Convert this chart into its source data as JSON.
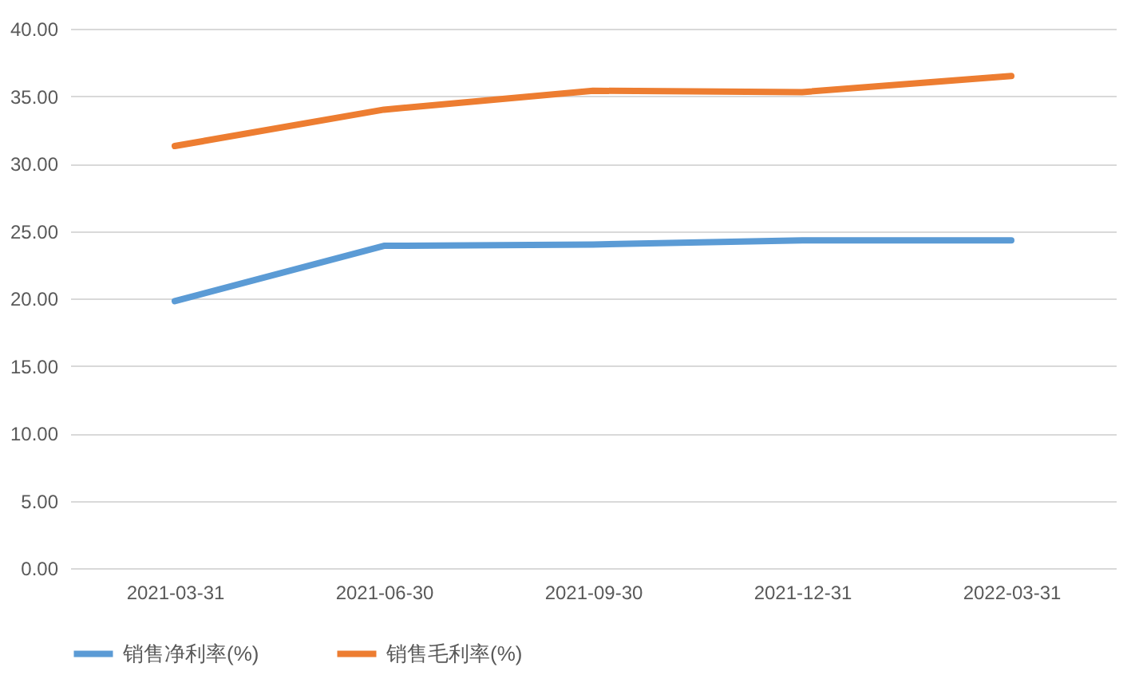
{
  "chart_data": {
    "type": "line",
    "categories": [
      "2021-03-31",
      "2021-06-30",
      "2021-09-30",
      "2021-12-31",
      "2022-03-31"
    ],
    "series": [
      {
        "name": "销售净利率(%)",
        "color": "#5b9bd5",
        "values": [
          19.8,
          23.9,
          24.0,
          24.3,
          24.3
        ]
      },
      {
        "name": "销售毛利率(%)",
        "color": "#ed7d31",
        "values": [
          31.3,
          34.0,
          35.4,
          35.3,
          36.5
        ]
      }
    ],
    "ylim": [
      0,
      40
    ],
    "yticks": [
      {
        "value": 0,
        "label": "0.00"
      },
      {
        "value": 5,
        "label": "5.00"
      },
      {
        "value": 10,
        "label": "10.00"
      },
      {
        "value": 15,
        "label": "15.00"
      },
      {
        "value": 20,
        "label": "20.00"
      },
      {
        "value": 25,
        "label": "25.00"
      },
      {
        "value": 30,
        "label": "30.00"
      },
      {
        "value": 35,
        "label": "35.00"
      },
      {
        "value": 40,
        "label": "40.00"
      }
    ],
    "grid": "y",
    "legend": "bottom",
    "marker": "none",
    "line_style": "solid"
  }
}
